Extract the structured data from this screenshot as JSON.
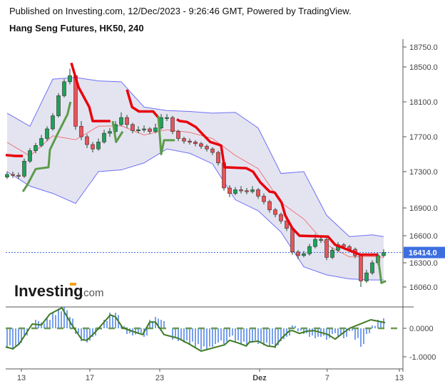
{
  "header": {
    "published": "Published on Investing.com, 12/Dec/2023 - 9:26:46 GMT, Powered by TradingView.",
    "title": "Hang Seng Futures, HK50, 240"
  },
  "logo": {
    "text": "Investing",
    "suffix": ".com"
  },
  "chart_data": {
    "type": "candlestick",
    "y_ticks": [
      18750,
      18500,
      18100,
      17700,
      17300,
      16900,
      16600,
      16300,
      16060
    ],
    "y_tick_labels": [
      "18750.0",
      "18500.0",
      "18100.0",
      "17700.0",
      "17300.0",
      "16900.0",
      "16600.0",
      "16300.0",
      "16060.0"
    ],
    "last_price": 16414.0,
    "last_price_label": "16414.0",
    "x_tick_labels": [
      {
        "bar": 2.5,
        "label": "13"
      },
      {
        "bar": 14.5,
        "label": "17"
      },
      {
        "bar": 26.75,
        "label": "23"
      },
      {
        "bar": 44.25,
        "label": "Dez"
      },
      {
        "bar": 56.1,
        "label": "7"
      },
      {
        "bar": 68.75,
        "label": "13"
      }
    ],
    "colors": {
      "up": "#1aa35a",
      "down": "#e8545a",
      "band_line": "#6f6ff5",
      "band_fill": "#e4e4f1",
      "basis": "#ee7777",
      "supertrend_down": "#e8000b",
      "supertrend_up": "#5c9c4a",
      "last_price": "#3d6ee0",
      "histogram": "#1f62e0",
      "oscillator": "#3d7a22"
    },
    "candles": [
      [
        17240,
        17300,
        17220,
        17270
      ],
      [
        17270,
        17300,
        17230,
        17260
      ],
      [
        17260,
        17290,
        17220,
        17250
      ],
      [
        17250,
        17450,
        17230,
        17420
      ],
      [
        17420,
        17570,
        17400,
        17540
      ],
      [
        17540,
        17630,
        17510,
        17600
      ],
      [
        17600,
        17720,
        17580,
        17680
      ],
      [
        17680,
        17820,
        17650,
        17790
      ],
      [
        17790,
        17970,
        17770,
        17940
      ],
      [
        17940,
        18200,
        17920,
        18170
      ],
      [
        18170,
        18360,
        18150,
        18330
      ],
      [
        18330,
        18480,
        18300,
        18400
      ],
      [
        18400,
        18420,
        17780,
        17820
      ],
      [
        17820,
        17880,
        17660,
        17700
      ],
      [
        17700,
        17730,
        17570,
        17610
      ],
      [
        17610,
        17640,
        17520,
        17560
      ],
      [
        17560,
        17680,
        17540,
        17640
      ],
      [
        17640,
        17780,
        17620,
        17740
      ],
      [
        17740,
        17800,
        17700,
        17760
      ],
      [
        17760,
        17880,
        17740,
        17840
      ],
      [
        17840,
        17980,
        17820,
        17920
      ],
      [
        17920,
        17950,
        17800,
        17840
      ],
      [
        17840,
        17860,
        17740,
        17770
      ],
      [
        17770,
        17820,
        17740,
        17780
      ],
      [
        17780,
        17830,
        17750,
        17790
      ],
      [
        17790,
        17810,
        17730,
        17760
      ],
      [
        17760,
        17850,
        17740,
        17800
      ],
      [
        17800,
        17960,
        17780,
        17920
      ],
      [
        17920,
        17960,
        17880,
        17920
      ],
      [
        17920,
        17940,
        17730,
        17760
      ],
      [
        17760,
        17780,
        17650,
        17680
      ],
      [
        17680,
        17700,
        17620,
        17650
      ],
      [
        17650,
        17680,
        17610,
        17640
      ],
      [
        17640,
        17660,
        17590,
        17620
      ],
      [
        17620,
        17640,
        17560,
        17590
      ],
      [
        17590,
        17610,
        17530,
        17560
      ],
      [
        17560,
        17580,
        17490,
        17520
      ],
      [
        17520,
        17540,
        17370,
        17400
      ],
      [
        17400,
        17420,
        17090,
        17120
      ],
      [
        17120,
        17150,
        17020,
        17060
      ],
      [
        17060,
        17130,
        17040,
        17100
      ],
      [
        17100,
        17140,
        17060,
        17090
      ],
      [
        17090,
        17120,
        17050,
        17080
      ],
      [
        17080,
        17140,
        17060,
        17100
      ],
      [
        17100,
        17120,
        17000,
        17030
      ],
      [
        17030,
        17060,
        16940,
        16970
      ],
      [
        16970,
        16990,
        16850,
        16880
      ],
      [
        16880,
        16900,
        16800,
        16830
      ],
      [
        16830,
        16850,
        16730,
        16760
      ],
      [
        16760,
        16780,
        16650,
        16680
      ],
      [
        16680,
        16700,
        16390,
        16420
      ],
      [
        16420,
        16440,
        16340,
        16380
      ],
      [
        16380,
        16430,
        16360,
        16400
      ],
      [
        16400,
        16510,
        16380,
        16480
      ],
      [
        16480,
        16620,
        16460,
        16560
      ],
      [
        16560,
        16600,
        16520,
        16560
      ],
      [
        16560,
        16580,
        16330,
        16360
      ],
      [
        16360,
        16470,
        16340,
        16440
      ],
      [
        16440,
        16530,
        16420,
        16500
      ],
      [
        16500,
        16520,
        16450,
        16480
      ],
      [
        16480,
        16500,
        16420,
        16450
      ],
      [
        16450,
        16470,
        16350,
        16380
      ],
      [
        16380,
        16400,
        16060,
        16120
      ],
      [
        16120,
        16230,
        16100,
        16200
      ],
      [
        16200,
        16330,
        16180,
        16300
      ],
      [
        16300,
        16410,
        16280,
        16380
      ],
      [
        16380,
        16450,
        16360,
        16414
      ]
    ],
    "band": {
      "bars": [
        0,
        4,
        8,
        12,
        16,
        20,
        24,
        28,
        32,
        36,
        40,
        44,
        48,
        52,
        56,
        60,
        64,
        66
      ],
      "upper": [
        17970,
        17820,
        18360,
        18380,
        18340,
        18330,
        18040,
        18000,
        17990,
        17970,
        17980,
        17800,
        17280,
        17300,
        16820,
        16590,
        16610,
        16590
      ],
      "lower": [
        17300,
        17140,
        17060,
        16950,
        17300,
        17320,
        17400,
        17560,
        17510,
        17390,
        16990,
        16870,
        16640,
        16260,
        16180,
        16140,
        16130,
        16130
      ],
      "basis": [
        17635,
        17480,
        17710,
        17665,
        17820,
        17825,
        17720,
        17780,
        17750,
        17680,
        17485,
        17335,
        16960,
        16780,
        16500,
        16365,
        16370,
        16360
      ]
    },
    "supertrend": [
      {
        "trend": "down",
        "points": [
          [
            -0.25,
            17490
          ],
          [
            1.5,
            17480
          ],
          [
            2.75,
            17480
          ]
        ]
      },
      {
        "trend": "up",
        "points": [
          [
            2.75,
            17080
          ],
          [
            3.5,
            17150
          ],
          [
            5,
            17330
          ],
          [
            7.25,
            17350
          ],
          [
            7.5,
            17550
          ],
          [
            8.75,
            17720
          ],
          [
            10.6,
            17960
          ],
          [
            11.1,
            18100
          ]
        ]
      },
      {
        "trend": "down",
        "points": [
          [
            11.25,
            18550
          ],
          [
            12.5,
            18270
          ],
          [
            14.4,
            18040
          ],
          [
            15,
            17880
          ],
          [
            18.1,
            17880
          ]
        ]
      },
      {
        "trend": "up",
        "points": [
          [
            18.5,
            17880
          ],
          [
            19.1,
            17640
          ],
          [
            20.25,
            17760
          ]
        ]
      },
      {
        "trend": "down",
        "points": [
          [
            21,
            18240
          ],
          [
            21.9,
            18040
          ],
          [
            23.1,
            17990
          ],
          [
            25.6,
            17990
          ],
          [
            26.5,
            17920
          ]
        ]
      },
      {
        "trend": "up",
        "points": [
          [
            26.5,
            17940
          ],
          [
            27,
            17500
          ],
          [
            27.5,
            17660
          ],
          [
            29.4,
            17660
          ]
        ]
      },
      {
        "trend": "down",
        "points": [
          [
            29.75,
            17900
          ],
          [
            30.25,
            17880
          ],
          [
            31.5,
            17870
          ],
          [
            33.1,
            17810
          ],
          [
            34.4,
            17720
          ],
          [
            35.6,
            17640
          ],
          [
            37.5,
            17600
          ],
          [
            38.1,
            17350
          ],
          [
            41.9,
            17340
          ],
          [
            43.1,
            17300
          ],
          [
            44.4,
            17180
          ],
          [
            46,
            17080
          ],
          [
            46.9,
            17070
          ],
          [
            48.1,
            16960
          ],
          [
            48.75,
            16820
          ],
          [
            50,
            16680
          ],
          [
            51.25,
            16600
          ],
          [
            56.25,
            16590
          ],
          [
            57.5,
            16500
          ],
          [
            61.9,
            16390
          ],
          [
            65,
            16390
          ]
        ]
      },
      {
        "trend": "up",
        "points": [
          [
            65,
            16370
          ],
          [
            65.6,
            16100
          ],
          [
            66.4,
            16120
          ]
        ]
      }
    ],
    "oscillator": {
      "y_ticks": [
        0,
        -1
      ],
      "y_tick_labels": [
        "0.0000",
        "-1.0000"
      ],
      "histogram": [
        -0.7,
        -0.75,
        -0.6,
        -0.3,
        0,
        0.3,
        0.2,
        0.35,
        0.55,
        0.7,
        0.75,
        0.4,
        -0.2,
        -0.45,
        -0.5,
        -0.3,
        -0.05,
        0.3,
        0.55,
        0.55,
        0.1,
        -0.2,
        -0.25,
        -0.2,
        -0.3,
        0.3,
        0.4,
        0.3,
        0,
        -0.4,
        -0.45,
        -0.5,
        -0.55,
        -0.65,
        -0.75,
        -0.75,
        -0.65,
        -0.5,
        -0.55,
        -0.3,
        -0.5,
        -0.55,
        -0.6,
        -0.5,
        -0.55,
        -0.6,
        -0.65,
        -0.7,
        -0.45,
        -0.3,
        0.1,
        -0.1,
        -0.2,
        -0.3,
        -0.35,
        -0.3,
        -0.4,
        -0.2,
        -0.3,
        -0.35,
        -0.1,
        -0.4,
        -0.65,
        -0.2,
        0.1,
        0.3,
        0.35
      ],
      "line": [
        [
          -0.25,
          -0.65
        ],
        [
          1,
          -0.72
        ],
        [
          2.1,
          -0.55
        ],
        [
          4.4,
          0.15
        ],
        [
          6,
          0.12
        ],
        [
          7.5,
          0.5
        ],
        [
          9.6,
          0.72
        ],
        [
          11.25,
          0.15
        ],
        [
          13.1,
          -0.4
        ],
        [
          14,
          -0.42
        ],
        [
          15.6,
          -0.1
        ],
        [
          18.1,
          0.47
        ],
        [
          19,
          0.4
        ],
        [
          20.25,
          0.02
        ],
        [
          21.9,
          -0.1
        ],
        [
          23.75,
          -0.22
        ],
        [
          25,
          0.22
        ],
        [
          26,
          0.22
        ],
        [
          27.5,
          -0.22
        ],
        [
          30,
          -0.35
        ],
        [
          31.9,
          -0.55
        ],
        [
          34,
          -0.8
        ],
        [
          36.25,
          -0.68
        ],
        [
          38.1,
          -0.58
        ],
        [
          39,
          -0.42
        ],
        [
          40.6,
          -0.52
        ],
        [
          41.9,
          -0.62
        ],
        [
          42.5,
          -0.48
        ],
        [
          44,
          -0.45
        ],
        [
          45.6,
          -0.62
        ],
        [
          46.9,
          -0.65
        ],
        [
          48.1,
          -0.35
        ],
        [
          49.4,
          -0.1
        ],
        [
          50,
          -0.08
        ],
        [
          51.25,
          -0.18
        ],
        [
          52.5,
          -0.1
        ],
        [
          53.75,
          -0.08
        ],
        [
          55.6,
          -0.18
        ],
        [
          56.25,
          -0.22
        ],
        [
          57.5,
          -0.38
        ],
        [
          58.5,
          -0.22
        ],
        [
          60,
          0
        ],
        [
          63.75,
          0.3
        ],
        [
          66.25,
          0.2
        ]
      ]
    }
  }
}
